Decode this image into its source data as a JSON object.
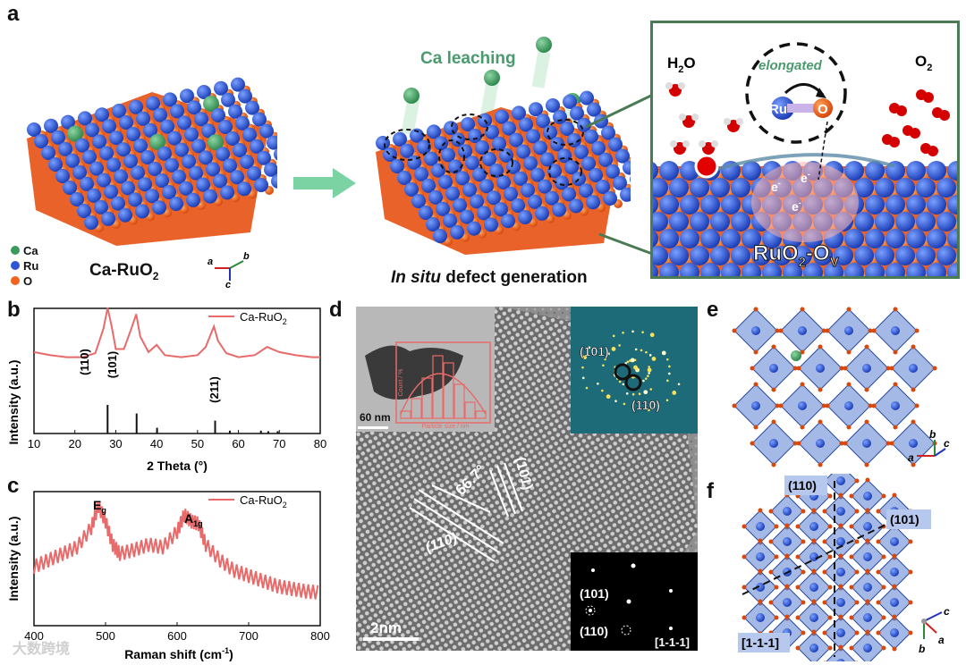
{
  "panels": {
    "a": {
      "label": "a",
      "caption_left": "Ca-RuO",
      "caption_left_sub": "2",
      "caption_mid_italic": "In situ",
      "caption_mid_rest": " defect generation",
      "leaching": "Ca leaching",
      "legend": [
        {
          "name": "Ca",
          "color": "#3a9a5b"
        },
        {
          "name": "Ru",
          "color": "#2f55d4"
        },
        {
          "name": "O",
          "color": "#f0641e"
        }
      ],
      "axes": {
        "a": "a",
        "b": "b",
        "c": "c"
      },
      "inset": {
        "h2o": "H",
        "h2o_sub": "2",
        "h2o_tail": "O",
        "o2": "O",
        "o2_sub": "2",
        "elongated": "elongated",
        "ru": "Ru",
        "o": "O",
        "electron": "e",
        "electron_sup": "-",
        "title": "RuO",
        "title_sub": "2",
        "title_mid": "-O",
        "title_sub2": "V"
      }
    },
    "b": {
      "label": "b",
      "legend": "Ca-RuO",
      "legend_sub": "2",
      "peaks": [
        "(110)",
        "(101)",
        "(211)"
      ],
      "xlabel": "2 Theta (°)",
      "ylabel": "Intensity (a.u.)",
      "xticks": [
        "10",
        "20",
        "30",
        "40",
        "50",
        "60",
        "70",
        "80"
      ]
    },
    "c": {
      "label": "c",
      "legend": "Ca-RuO",
      "legend_sub": "2",
      "peak1": "E",
      "peak1_sub": "g",
      "peak2": "A",
      "peak2_sub": "1g",
      "xlabel": "Raman shift (cm",
      "xlabel_sup": "-1",
      "xlabel_tail": ")",
      "ylabel": "Intensity (a.u.)",
      "xticks": [
        "400",
        "500",
        "600",
        "700",
        "800"
      ]
    },
    "d": {
      "label": "d",
      "scale_inset": "60 nm",
      "hist_xlabel": "Particle size / nm",
      "hist_ylabel": "Count / %",
      "fft_labels": [
        "(101)",
        "(110)"
      ],
      "angle": "66.7°",
      "plane_a": "(101)",
      "plane_b": "(110)",
      "saed_labels": [
        "(101)",
        "(110)",
        "[1-1-1]"
      ],
      "scale": "2nm"
    },
    "e": {
      "label": "e",
      "axes": {
        "a": "a",
        "b": "b",
        "c": "c"
      }
    },
    "f": {
      "label": "f",
      "tags": [
        "(110)",
        "(101)",
        "[1-1-1]"
      ],
      "axes": {
        "a": "a",
        "b": "b",
        "c": "c"
      }
    }
  },
  "watermark": "大数跨境",
  "chart_data": [
    {
      "type": "line",
      "title": "",
      "xlabel": "2 Theta (°)",
      "ylabel": "Intensity (a.u.)",
      "xlim": [
        10,
        80
      ],
      "series": [
        {
          "name": "Ca-RuO2",
          "x": [
            10,
            14,
            18,
            22,
            25,
            27,
            28,
            29,
            30,
            32,
            34,
            35,
            36,
            38,
            40,
            42,
            46,
            50,
            52,
            54,
            55,
            57,
            60,
            64,
            67,
            70,
            74,
            78,
            80
          ],
          "y": [
            0.55,
            0.52,
            0.5,
            0.5,
            0.54,
            0.78,
            0.98,
            0.8,
            0.58,
            0.58,
            0.8,
            0.92,
            0.7,
            0.55,
            0.62,
            0.52,
            0.5,
            0.52,
            0.6,
            0.8,
            0.66,
            0.54,
            0.5,
            0.52,
            0.6,
            0.55,
            0.52,
            0.5,
            0.5
          ]
        }
      ],
      "reference_sticks": {
        "x": [
          28.0,
          35.1,
          40.1,
          54.3,
          57.9,
          65.5,
          67.3,
          69.6
        ],
        "h": [
          1.0,
          0.7,
          0.2,
          0.45,
          0.1,
          0.1,
          0.08,
          0.08
        ]
      },
      "peak_labels": [
        "(110)",
        "(101)",
        "(211)"
      ]
    },
    {
      "type": "line",
      "title": "",
      "xlabel": "Raman shift (cm-1)",
      "ylabel": "Intensity (a.u.)",
      "xlim": [
        400,
        800
      ],
      "series": [
        {
          "name": "Ca-RuO2",
          "x": [
            400,
            420,
            440,
            460,
            480,
            490,
            500,
            510,
            520,
            540,
            560,
            580,
            600,
            610,
            620,
            630,
            640,
            660,
            680,
            700,
            720,
            740,
            760,
            780,
            800
          ],
          "y": [
            0.45,
            0.5,
            0.55,
            0.6,
            0.75,
            0.92,
            0.8,
            0.62,
            0.55,
            0.58,
            0.62,
            0.6,
            0.72,
            0.85,
            0.8,
            0.78,
            0.62,
            0.5,
            0.42,
            0.38,
            0.34,
            0.3,
            0.28,
            0.26,
            0.25
          ]
        }
      ],
      "peak_labels": [
        "Eg",
        "A1g"
      ]
    }
  ]
}
